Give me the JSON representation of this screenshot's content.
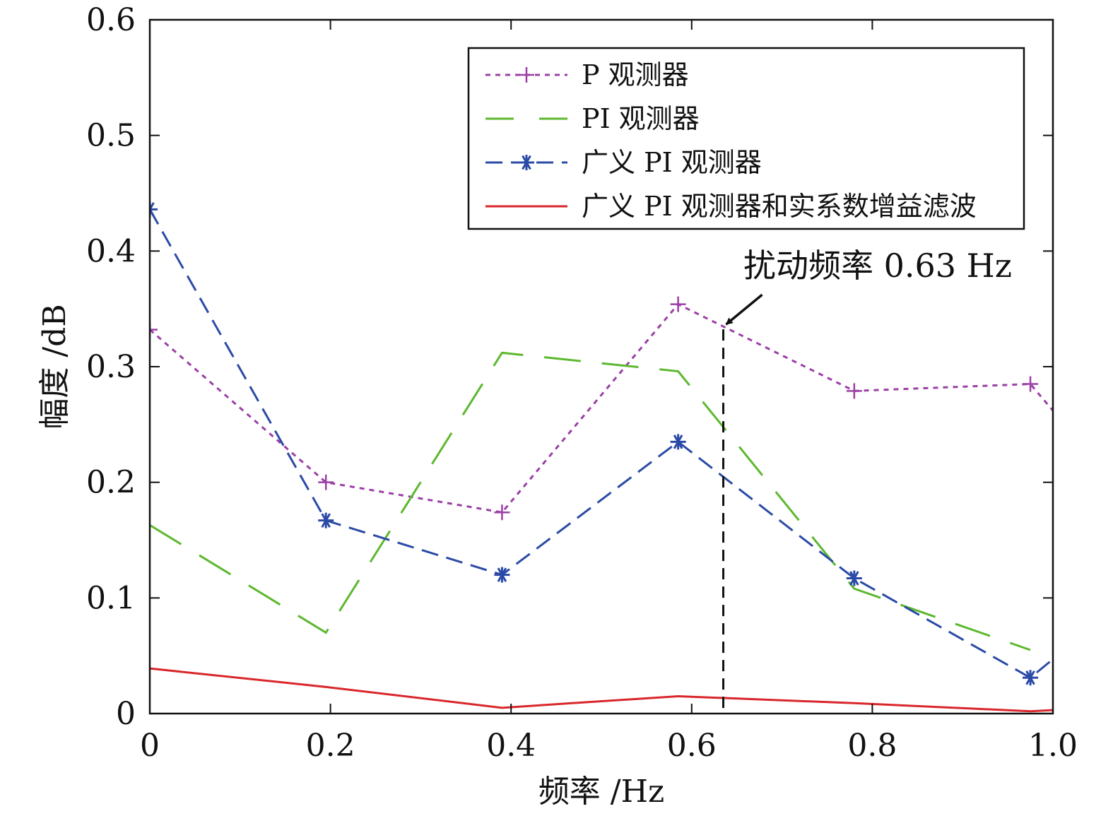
{
  "chart_data": {
    "type": "line",
    "xlabel": "频率 /Hz",
    "ylabel": "幅度 /dB",
    "xlim": [
      0,
      1.0
    ],
    "ylim": [
      0,
      0.6
    ],
    "xticks": [
      0,
      0.2,
      0.4,
      0.6,
      0.8,
      1.0
    ],
    "xtick_labels": [
      "0",
      "0.2",
      "0.4",
      "0.6",
      "0.8",
      "1.0"
    ],
    "yticks": [
      0,
      0.1,
      0.2,
      0.3,
      0.4,
      0.5,
      0.6
    ],
    "ytick_labels": [
      "0",
      "0.1",
      "0.2",
      "0.3",
      "0.4",
      "0.5",
      "0.6"
    ],
    "grid": false,
    "legend_position": "top-right",
    "series": [
      {
        "name": "P 观测器",
        "color": "#9b3fa6",
        "line": "dotted",
        "marker": "plus",
        "x": [
          0,
          0.195,
          0.39,
          0.585,
          0.78,
          0.975,
          1.0
        ],
        "y": [
          0.332,
          0.2,
          0.174,
          0.354,
          0.279,
          0.285,
          0.262
        ]
      },
      {
        "name": "PI 观测器",
        "color": "#5cb82e",
        "line": "long-dash",
        "marker": "none",
        "x": [
          0,
          0.195,
          0.39,
          0.585,
          0.78,
          0.975
        ],
        "y": [
          0.163,
          0.07,
          0.312,
          0.296,
          0.108,
          0.055
        ]
      },
      {
        "name": "广义 PI 观测器",
        "color": "#2a4aa6",
        "line": "dash",
        "marker": "asterisk",
        "x": [
          0,
          0.195,
          0.39,
          0.585,
          0.78,
          0.975,
          1.0
        ],
        "y": [
          0.436,
          0.167,
          0.12,
          0.235,
          0.117,
          0.031,
          0.047
        ]
      },
      {
        "name": "广义 PI 观测器和实系数增益滤波",
        "color": "#d9262b",
        "line": "solid",
        "marker": "none",
        "x": [
          0,
          0.195,
          0.39,
          0.585,
          0.78,
          0.975,
          1.0
        ],
        "y": [
          0.039,
          0.023,
          0.005,
          0.015,
          0.009,
          0.002,
          0.003
        ]
      }
    ],
    "annotations": [
      {
        "text": "扰动频率 0.63 Hz",
        "x": 0.635,
        "type": "vertical-dashed-line-with-arrow"
      }
    ]
  }
}
